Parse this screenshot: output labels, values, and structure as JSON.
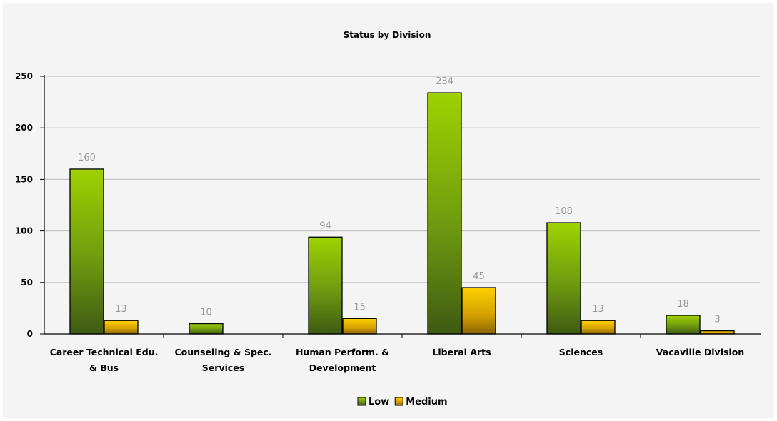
{
  "chart_data": {
    "type": "bar",
    "title": "Status by Division",
    "categories": [
      [
        "Career Technical Edu.",
        "& Bus"
      ],
      [
        "Counseling & Spec.",
        "Services"
      ],
      [
        "Human Perform. &",
        "Development"
      ],
      [
        "Liberal Arts"
      ],
      [
        "Sciences"
      ],
      [
        "Vacaville Division"
      ]
    ],
    "series": [
      {
        "name": "Low",
        "values": [
          160,
          10,
          94,
          234,
          108,
          18
        ],
        "labels": [
          "160",
          "10",
          "94",
          "234",
          "108",
          "18"
        ],
        "color": "#8fbf00"
      },
      {
        "name": "Medium",
        "values": [
          13,
          null,
          15,
          45,
          13,
          3
        ],
        "labels": [
          "13",
          "",
          "15",
          "45",
          "13",
          "3"
        ],
        "color": "#ffc600"
      }
    ],
    "y_ticks": [
      "0",
      "50",
      "100",
      "150",
      "200",
      "250"
    ],
    "ylim": [
      0,
      250
    ],
    "grid": true,
    "legend_position": "bottom-center"
  }
}
